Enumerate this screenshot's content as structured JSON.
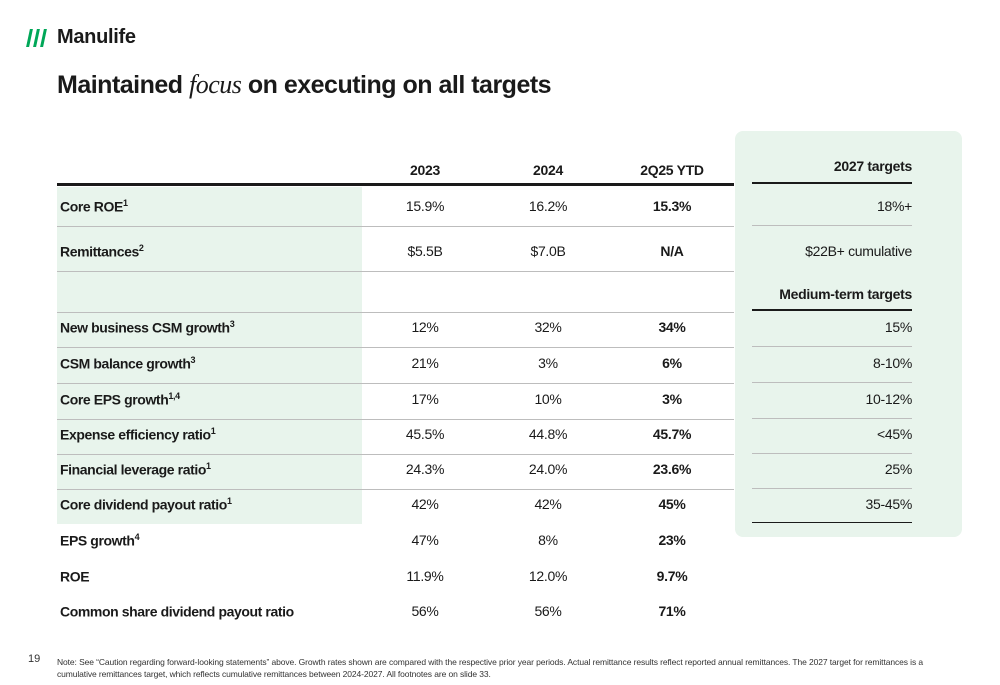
{
  "brand": {
    "name": "Manulife",
    "color": "#00a758"
  },
  "title": {
    "part1": "Maintained ",
    "emphasis": "focus",
    "part2": " on executing on all targets"
  },
  "table": {
    "headers": [
      "2023",
      "2024",
      "2Q25 YTD"
    ],
    "rows": [
      {
        "label": "Core ROE",
        "sup": "1",
        "values": [
          "15.9%",
          "16.2%",
          "15.3%"
        ]
      },
      {
        "label": "Remittances",
        "sup": "2",
        "values": [
          "$5.5B",
          "$7.0B",
          "N/A"
        ]
      },
      {
        "label": "",
        "sup": "",
        "values": [
          "",
          "",
          ""
        ]
      },
      {
        "label": "New business CSM growth",
        "sup": "3",
        "values": [
          "12%",
          "32%",
          "34%"
        ]
      },
      {
        "label": "CSM balance growth",
        "sup": "3",
        "values": [
          "21%",
          "3%",
          "6%"
        ]
      },
      {
        "label": "Core EPS growth",
        "sup": "1,4",
        "values": [
          "17%",
          "10%",
          "3%"
        ]
      },
      {
        "label": "Expense efficiency ratio",
        "sup": "1",
        "values": [
          "45.5%",
          "44.8%",
          "45.7%"
        ]
      },
      {
        "label": "Financial leverage ratio",
        "sup": "1",
        "values": [
          "24.3%",
          "24.0%",
          "23.6%"
        ]
      },
      {
        "label": "Core dividend payout ratio",
        "sup": "1",
        "values": [
          "42%",
          "42%",
          "45%"
        ]
      },
      {
        "label": "EPS growth",
        "sup": "4",
        "values": [
          "47%",
          "8%",
          "23%"
        ]
      },
      {
        "label": "ROE",
        "sup": "",
        "values": [
          "11.9%",
          "12.0%",
          "9.7%"
        ]
      },
      {
        "label": "Common share dividend payout ratio",
        "sup": "",
        "values": [
          "56%",
          "56%",
          "71%"
        ]
      }
    ]
  },
  "targets": {
    "header_2027": "2027 targets",
    "values_2027": [
      "18%+",
      "$22B+ cumulative"
    ],
    "header_medium": "Medium-term targets",
    "values_medium": [
      "15%",
      "8-10%",
      "10-12%",
      "<45%",
      "25%",
      "35-45%"
    ]
  },
  "page_number": "19",
  "note": "Note: See “Caution regarding forward-looking statements” above. Growth rates shown are compared with the respective prior year periods. Actual remittance results reflect reported annual remittances. The 2027 target for remittances is a cumulative remittances target, which reflects cumulative remittances between 2024-2027. All footnotes are on slide 33."
}
